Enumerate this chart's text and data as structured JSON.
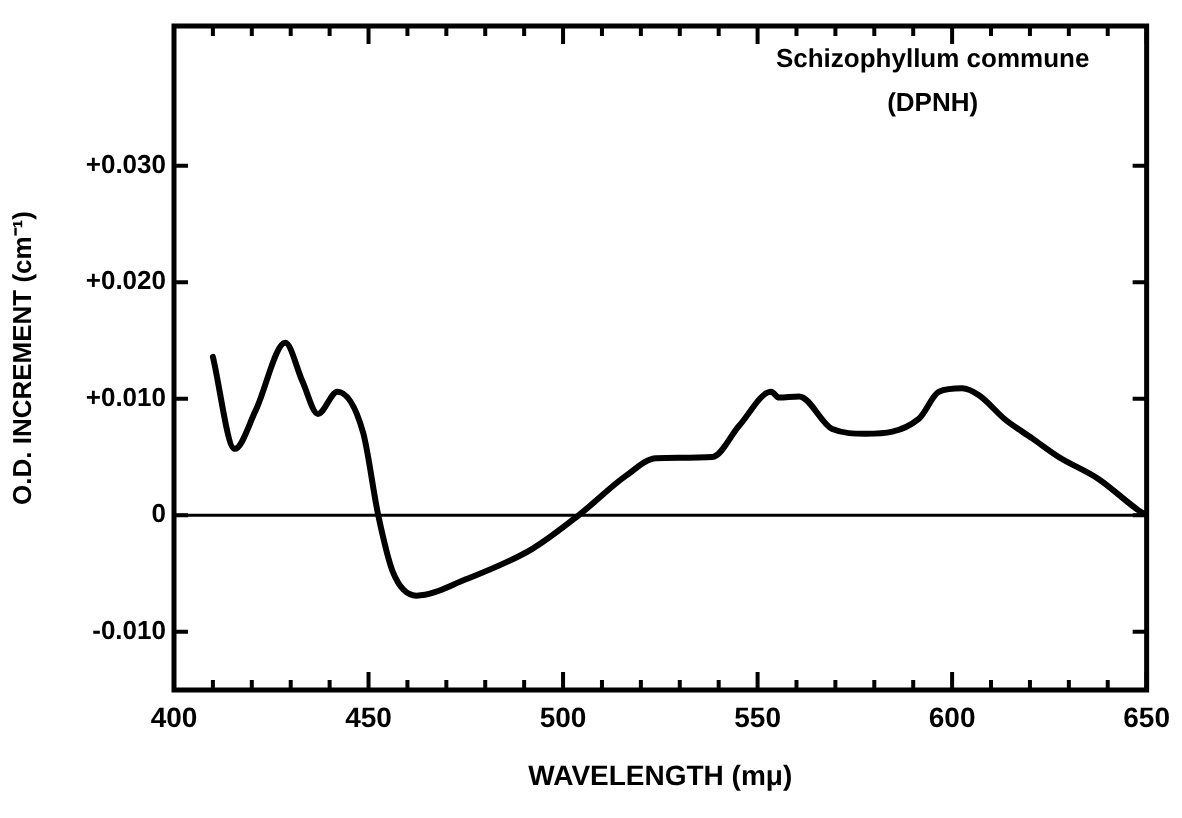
{
  "chart_data": {
    "type": "line",
    "xlabel": "WAVELENGTH (mμ)",
    "ylabel": "O.D. INCREMENT (cm⁻¹)",
    "annotations": [
      "Schizophyllum commune",
      "(DPNH)"
    ],
    "x": [
      410,
      415.6,
      421,
      428.6,
      433,
      437,
      442,
      448.6,
      452.5,
      456.3,
      462.3,
      475,
      492,
      504,
      516.2,
      523.9,
      538.4,
      545.3,
      553.5,
      555.5,
      560.7,
      569.2,
      577.8,
      591.5,
      596.6,
      602.6,
      606.9,
      613.7,
      620.6,
      627.4,
      637.7,
      648,
      650
    ],
    "series": [
      {
        "color": "#000000",
        "values": [
          0.0136,
          0.0057,
          0.009,
          0.0148,
          0.0115,
          0.0087,
          0.0106,
          0.0071,
          0,
          -0.0049,
          -0.0069,
          -0.0055,
          -0.0029,
          0,
          0.0034,
          0.0049,
          0.005,
          0.0077,
          0.0106,
          0.0101,
          0.0102,
          0.0074,
          0.007,
          0.0083,
          0.0106,
          0.0109,
          0.0103,
          0.0082,
          0.0066,
          0.005,
          0.0031,
          0.0004,
          0
        ]
      }
    ],
    "xlim": [
      400,
      650
    ],
    "xticks": [
      400,
      {
        "value": 410,
        "label": null
      },
      {
        "value": 420,
        "label": null
      },
      {
        "value": 430,
        "label": null
      },
      {
        "value": 440,
        "label": null
      },
      450,
      {
        "value": 460,
        "label": null
      },
      {
        "value": 470,
        "label": null
      },
      {
        "value": 480,
        "label": null
      },
      {
        "value": 490,
        "label": null
      },
      500,
      {
        "value": 510,
        "label": null
      },
      {
        "value": 520,
        "label": null
      },
      {
        "value": 530,
        "label": null
      },
      {
        "value": 540,
        "label": null
      },
      550,
      {
        "value": 560,
        "label": null
      },
      {
        "value": 570,
        "label": null
      },
      {
        "value": 580,
        "label": null
      },
      {
        "value": 590,
        "label": null
      },
      600,
      {
        "value": 610,
        "label": null
      },
      {
        "value": 620,
        "label": null
      },
      {
        "value": 630,
        "label": null
      },
      {
        "value": 640,
        "label": null
      },
      650
    ],
    "ylim": [
      -0.015,
      0.042
    ],
    "yticks": [
      {
        "value": -0.01,
        "label": "-0.010"
      },
      0,
      {
        "value": 0.01,
        "label": "+0.010"
      },
      {
        "value": 0.02,
        "label": "+0.020"
      },
      {
        "value": 0.03,
        "label": "+0.030"
      }
    ],
    "ref_lines": [
      {
        "axis": "y",
        "value": 0,
        "color": "#000000"
      }
    ],
    "marker": "none",
    "line_style": "solid"
  }
}
